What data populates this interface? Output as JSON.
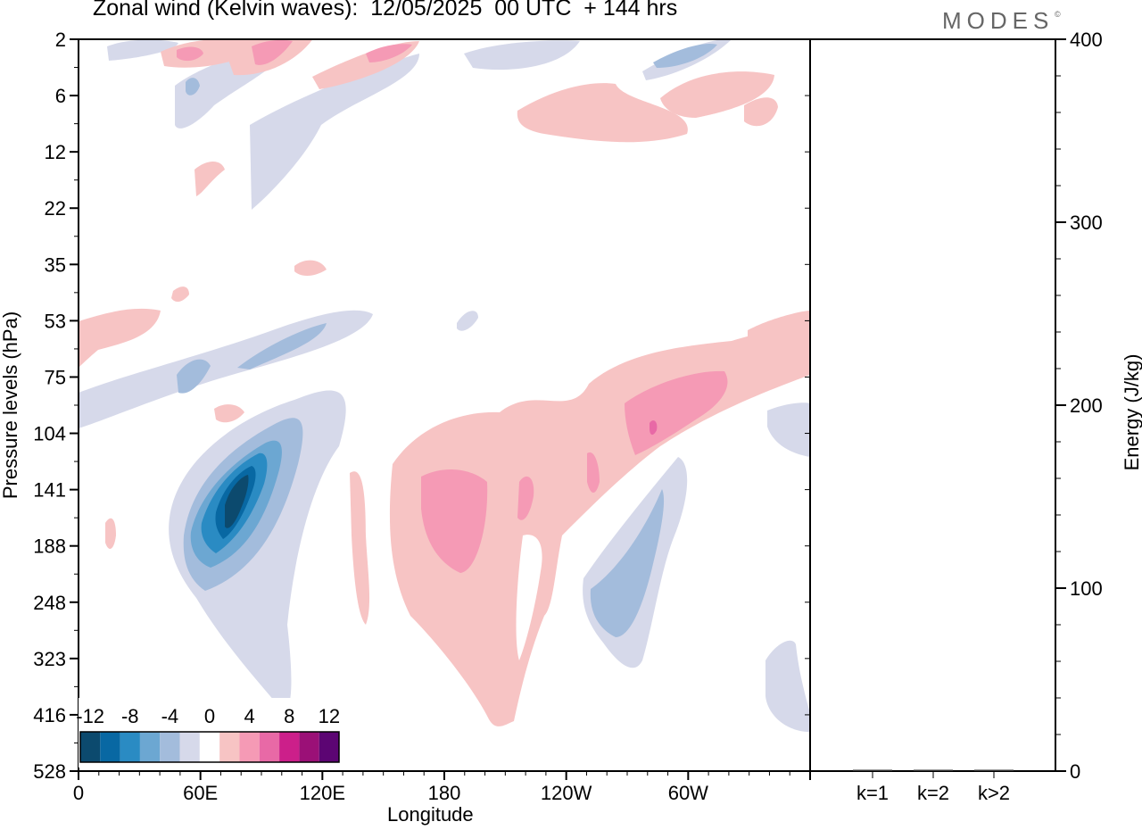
{
  "title": "Zonal wind (Kelvin waves):  12/05/2025  00 UTC  + 144 hrs",
  "brand": {
    "name": "MODES",
    "mark": "©"
  },
  "colors": {
    "n12": "#0c4a6e",
    "n10": "#0868a3",
    "n8": "#2a8bc3",
    "n6": "#6ca7d2",
    "n4": "#a3bcdc",
    "n2": "#d6d9ea",
    "zero": "#ffffff",
    "p2": "#f7c4c4",
    "p4": "#f59ab5",
    "p6": "#e869a6",
    "p8": "#cc1f8a",
    "p10": "#9b1077",
    "p12": "#5c0573"
  },
  "chart_data": [
    {
      "type": "heatmap",
      "title": "Zonal wind (Kelvin waves):  12/05/2025  00 UTC  + 144 hrs",
      "xlabel": "Longitude",
      "ylabel": "Pressure levels (hPa)",
      "x_ticks": [
        "0",
        "60E",
        "120E",
        "180",
        "120W",
        "60W"
      ],
      "x_range": [
        0,
        360
      ],
      "y_ticks": [
        "2",
        "6",
        "12",
        "22",
        "35",
        "53",
        "75",
        "104",
        "141",
        "188",
        "248",
        "323",
        "416",
        "528"
      ],
      "y_scale": "log (pressure levels)",
      "colorbar": {
        "labels": [
          "-12",
          "-8",
          "-4",
          "0",
          "4",
          "8",
          "12"
        ],
        "levels": [
          -14,
          -12,
          -10,
          -8,
          -6,
          -4,
          -2,
          2,
          4,
          6,
          8,
          10,
          12,
          14
        ],
        "colors": [
          "#0c4a6e",
          "#0868a3",
          "#2a8bc3",
          "#6ca7d2",
          "#a3bcdc",
          "#d6d9ea",
          "#ffffff",
          "#f7c4c4",
          "#f59ab5",
          "#e869a6",
          "#cc1f8a",
          "#9b1077",
          "#5c0573"
        ]
      },
      "features": [
        {
          "lon": [
            50,
            105
          ],
          "level_hPa": [
            100,
            260
          ],
          "min_value": -13,
          "sign": "negative"
        },
        {
          "lon": [
            170,
            240
          ],
          "level_hPa": [
            100,
            420
          ],
          "max_value": 6,
          "sign": "positive"
        },
        {
          "lon": [
            235,
            290
          ],
          "level_hPa": [
            60,
            140
          ],
          "max_value": 8,
          "sign": "positive"
        },
        {
          "lon": [
            245,
            290
          ],
          "level_hPa": [
            140,
            330
          ],
          "min_value": -6,
          "sign": "negative"
        },
        {
          "lon": [
            200,
            305
          ],
          "level_hPa": [
            2,
            12
          ],
          "max_value": 4,
          "sign": "positive"
        },
        {
          "lon": [
            50,
            140
          ],
          "level_hPa": [
            2,
            25
          ],
          "min_value": -6,
          "sign": "mixed"
        }
      ]
    },
    {
      "type": "bar",
      "categories": [
        "k=1",
        "k=2",
        "k>2"
      ],
      "values": [
        0.4,
        0.4,
        0.4
      ],
      "ylabel": "Energy (J/kg)",
      "ylim": [
        0,
        400
      ],
      "y_ticks": [
        "0",
        "100",
        "200",
        "300",
        "400"
      ]
    }
  ]
}
